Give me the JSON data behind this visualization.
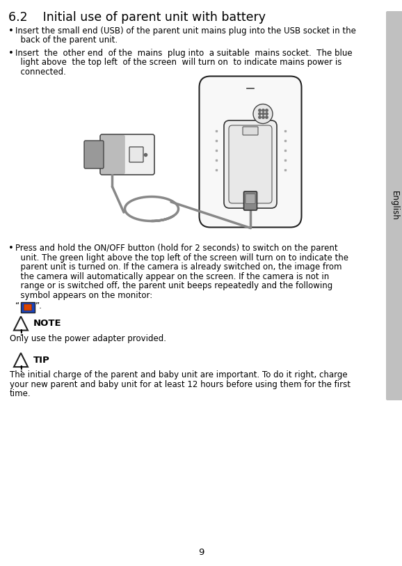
{
  "bg_color": "#ffffff",
  "text_color": "#000000",
  "sidebar_color": "#c0c0c0",
  "sidebar_text": "English",
  "page_number": "9",
  "title": "6.2    Initial use of parent unit with battery",
  "title_font_size": 12.5,
  "body_font_size": 8.5,
  "label_font_size": 9.5,
  "bullet1_line1": "Insert the small end (USB) of the parent unit mains plug into the USB socket in the",
  "bullet1_line2": "  back of the parent unit.",
  "bullet2_line1": "Insert  the  other end  of the  mains  plug into  a suitable  mains socket.  The blue",
  "bullet2_line2": "  light above  the top left  of the screen  will turn on  to indicate mains power is",
  "bullet2_line3": "  connected.",
  "bullet3_line1": "Press and hold the ON/OFF button (hold for 2 seconds) to switch on the parent",
  "bullet3_line2": "  unit. The green light above the top left of the screen will turn on to indicate the",
  "bullet3_line3": "  parent unit is turned on. If the camera is already switched on, the image from",
  "bullet3_line4": "  the camera will automatically appear on the screen. If the camera is not in",
  "bullet3_line5": "  range or is switched off, the parent unit beeps repeatedly and the following",
  "bullet3_line6": "  symbol appears on the monitor:",
  "symbol_quote_open": "“",
  "symbol_quote_close": "”.",
  "note_label": "NOTE",
  "note_text": "Only use the power adapter provided.",
  "tip_label": "TIP",
  "tip_line1": "The initial charge of the parent and baby unit are important. To do it right, charge",
  "tip_line2": "your new parent and baby unit for at least 12 hours before using them for the first",
  "tip_line3": "time."
}
